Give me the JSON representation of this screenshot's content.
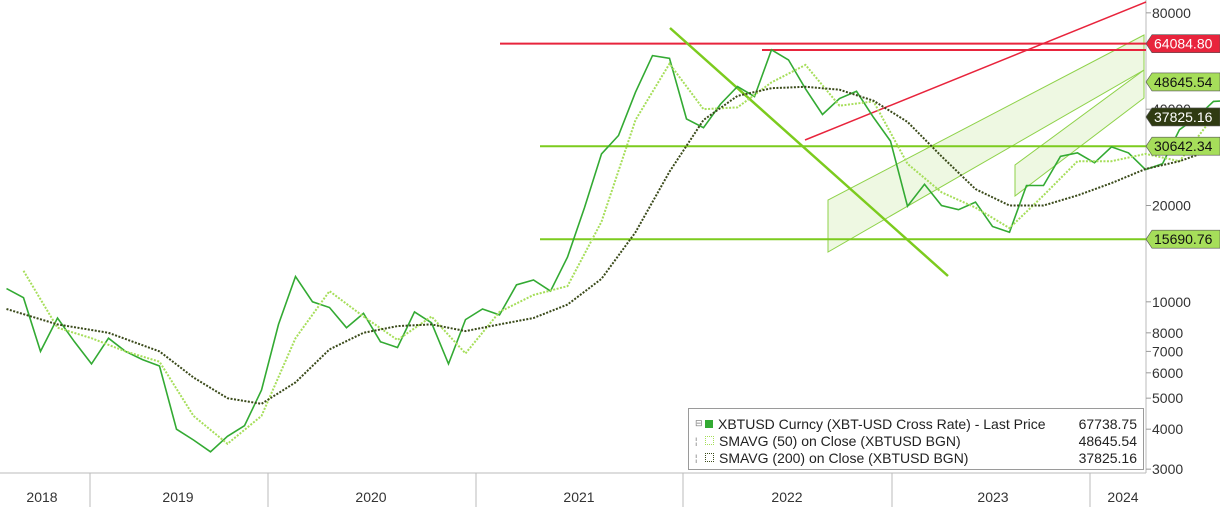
{
  "chart_data": {
    "type": "line",
    "title": "",
    "xlabel": "",
    "ylabel": "",
    "y_scale": "log",
    "ylim": [
      2900,
      85000
    ],
    "x_range": [
      "2018-01",
      "2024-03"
    ],
    "grid": false,
    "legend_position": "bottom-right",
    "x_ticks": [
      "2018",
      "2019",
      "2020",
      "2021",
      "2022",
      "2023",
      "2024"
    ],
    "y_ticks": [
      3000,
      4000,
      5000,
      6000,
      7000,
      8000,
      10000,
      20000,
      40000,
      80000
    ],
    "y_tick_labels": [
      "3000",
      "4000",
      "5000",
      "6000",
      "7000",
      "8000",
      "10000",
      "20000",
      "40000",
      "80000"
    ],
    "series": [
      {
        "name": "XBTUSD Curncy (XBT-USD Cross Rate) - Last Price",
        "color": "#33aa33",
        "last": "67738.75",
        "points": [
          [
            "2018-01",
            11000
          ],
          [
            "2018-02",
            10300
          ],
          [
            "2018-03",
            7000
          ],
          [
            "2018-04",
            8900
          ],
          [
            "2018-05",
            7500
          ],
          [
            "2018-06",
            6400
          ],
          [
            "2018-07",
            7700
          ],
          [
            "2018-08",
            7000
          ],
          [
            "2018-09",
            6600
          ],
          [
            "2018-10",
            6300
          ],
          [
            "2018-11",
            4000
          ],
          [
            "2018-12",
            3700
          ],
          [
            "2019-01",
            3400
          ],
          [
            "2019-02",
            3800
          ],
          [
            "2019-03",
            4100
          ],
          [
            "2019-04",
            5300
          ],
          [
            "2019-05",
            8500
          ],
          [
            "2019-06",
            12000
          ],
          [
            "2019-07",
            10000
          ],
          [
            "2019-08",
            9600
          ],
          [
            "2019-09",
            8300
          ],
          [
            "2019-10",
            9200
          ],
          [
            "2019-11",
            7500
          ],
          [
            "2019-12",
            7200
          ],
          [
            "2020-01",
            9300
          ],
          [
            "2020-02",
            8600
          ],
          [
            "2020-03",
            6400
          ],
          [
            "2020-04",
            8800
          ],
          [
            "2020-05",
            9500
          ],
          [
            "2020-06",
            9100
          ],
          [
            "2020-07",
            11300
          ],
          [
            "2020-08",
            11700
          ],
          [
            "2020-09",
            10800
          ],
          [
            "2020-10",
            13800
          ],
          [
            "2020-11",
            19700
          ],
          [
            "2020-12",
            29000
          ],
          [
            "2021-01",
            33100
          ],
          [
            "2021-02",
            45200
          ],
          [
            "2021-03",
            58800
          ],
          [
            "2021-04",
            57700
          ],
          [
            "2021-05",
            37300
          ],
          [
            "2021-06",
            35000
          ],
          [
            "2021-07",
            41500
          ],
          [
            "2021-08",
            47100
          ],
          [
            "2021-09",
            43800
          ],
          [
            "2021-10",
            61300
          ],
          [
            "2021-11",
            57000
          ],
          [
            "2021-12",
            46300
          ],
          [
            "2022-01",
            38500
          ],
          [
            "2022-02",
            43200
          ],
          [
            "2022-03",
            45500
          ],
          [
            "2022-04",
            37700
          ],
          [
            "2022-05",
            31800
          ],
          [
            "2022-06",
            19900
          ],
          [
            "2022-07",
            23300
          ],
          [
            "2022-08",
            20000
          ],
          [
            "2022-09",
            19400
          ],
          [
            "2022-10",
            20500
          ],
          [
            "2022-11",
            17200
          ],
          [
            "2022-12",
            16500
          ],
          [
            "2023-01",
            23100
          ],
          [
            "2023-02",
            23100
          ],
          [
            "2023-03",
            28500
          ],
          [
            "2023-04",
            29200
          ],
          [
            "2023-05",
            27200
          ],
          [
            "2023-06",
            30500
          ],
          [
            "2023-07",
            29200
          ],
          [
            "2023-08",
            25900
          ],
          [
            "2023-09",
            27000
          ],
          [
            "2023-10",
            34500
          ],
          [
            "2023-11",
            37700
          ],
          [
            "2023-12",
            42300
          ],
          [
            "2024-01",
            42600
          ],
          [
            "2024-02",
            61200
          ],
          [
            "2024-03",
            67738.75
          ]
        ]
      },
      {
        "name": "SMAVG (50) on Close (XBTUSD BGN)",
        "color": "#a6de5a",
        "last": "48645.54",
        "points": [
          [
            "2018-02",
            12500
          ],
          [
            "2018-04",
            8300
          ],
          [
            "2018-06",
            7700
          ],
          [
            "2018-08",
            7000
          ],
          [
            "2018-10",
            6500
          ],
          [
            "2018-12",
            4400
          ],
          [
            "2019-02",
            3600
          ],
          [
            "2019-04",
            4400
          ],
          [
            "2019-06",
            7700
          ],
          [
            "2019-08",
            10800
          ],
          [
            "2019-10",
            9000
          ],
          [
            "2019-12",
            7600
          ],
          [
            "2020-02",
            9000
          ],
          [
            "2020-04",
            6900
          ],
          [
            "2020-06",
            9300
          ],
          [
            "2020-08",
            10500
          ],
          [
            "2020-10",
            11200
          ],
          [
            "2020-12",
            17800
          ],
          [
            "2021-02",
            37000
          ],
          [
            "2021-04",
            55500
          ],
          [
            "2021-06",
            40000
          ],
          [
            "2021-08",
            40500
          ],
          [
            "2021-10",
            48500
          ],
          [
            "2021-12",
            55000
          ],
          [
            "2022-02",
            41000
          ],
          [
            "2022-04",
            42300
          ],
          [
            "2022-06",
            27000
          ],
          [
            "2022-08",
            22000
          ],
          [
            "2022-10",
            19700
          ],
          [
            "2022-12",
            17000
          ],
          [
            "2023-02",
            21500
          ],
          [
            "2023-04",
            27500
          ],
          [
            "2023-06",
            27500
          ],
          [
            "2023-08",
            29000
          ],
          [
            "2023-10",
            27500
          ],
          [
            "2023-12",
            38000
          ],
          [
            "2024-02",
            43800
          ],
          [
            "2024-03",
            48645.54
          ]
        ]
      },
      {
        "name": "SMAVG (200) on Close (XBTUSD BGN)",
        "color": "#3a4a1a",
        "last": "37825.16",
        "points": [
          [
            "2018-01",
            9500
          ],
          [
            "2018-04",
            8500
          ],
          [
            "2018-07",
            8000
          ],
          [
            "2018-10",
            7000
          ],
          [
            "2018-12",
            5800
          ],
          [
            "2019-02",
            5000
          ],
          [
            "2019-04",
            4800
          ],
          [
            "2019-06",
            5600
          ],
          [
            "2019-08",
            7100
          ],
          [
            "2019-10",
            8000
          ],
          [
            "2019-12",
            8400
          ],
          [
            "2020-02",
            8500
          ],
          [
            "2020-04",
            8100
          ],
          [
            "2020-06",
            8500
          ],
          [
            "2020-08",
            8900
          ],
          [
            "2020-10",
            9800
          ],
          [
            "2020-12",
            11800
          ],
          [
            "2021-02",
            16500
          ],
          [
            "2021-04",
            25500
          ],
          [
            "2021-06",
            37000
          ],
          [
            "2021-08",
            44000
          ],
          [
            "2021-10",
            46500
          ],
          [
            "2021-12",
            47000
          ],
          [
            "2022-02",
            46000
          ],
          [
            "2022-04",
            42500
          ],
          [
            "2022-06",
            36500
          ],
          [
            "2022-08",
            28500
          ],
          [
            "2022-10",
            22500
          ],
          [
            "2022-12",
            20000
          ],
          [
            "2023-02",
            20000
          ],
          [
            "2023-04",
            21500
          ],
          [
            "2023-06",
            23500
          ],
          [
            "2023-08",
            26000
          ],
          [
            "2023-10",
            27500
          ],
          [
            "2023-12",
            30000
          ],
          [
            "2024-02",
            34000
          ],
          [
            "2024-03",
            37825.16
          ]
        ]
      }
    ],
    "horizontal_levels": [
      {
        "label": "64084.80",
        "value": 64084.8,
        "color": "#e8243c"
      },
      {
        "label": "48645.54",
        "value": 48645.54,
        "color": "#a6de5a"
      },
      {
        "label": "37825.16",
        "value": 37825.16,
        "color": "#3a4a1a"
      },
      {
        "label": "30642.34",
        "value": 30642.34,
        "color": "#7ccb1e"
      },
      {
        "label": "15690.76",
        "value": 15690.76,
        "color": "#7ccb1e"
      }
    ]
  },
  "legend": [
    {
      "name": "XBTUSD Curncy (XBT-USD Cross Rate) - Last Price",
      "value": "67738.75"
    },
    {
      "name": "SMAVG (50)  on Close (XBTUSD BGN)",
      "value": "48645.54"
    },
    {
      "name": "SMAVG (200)  on Close (XBTUSD BGN)",
      "value": "37825.16"
    }
  ]
}
